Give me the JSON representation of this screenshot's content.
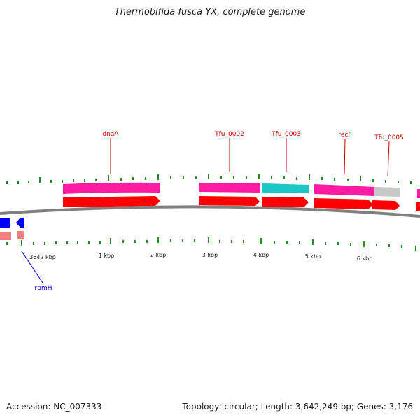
{
  "title": "Thermobifida fusca YX, complete genome",
  "footer": {
    "accession": "Accession: NC_007333",
    "summary": "Topology: circular; Length: 3,642,249 bp; Genes: 3,176"
  },
  "colors": {
    "cds_forward": "#ff0000",
    "cds_reverse": "#0000ff",
    "cog_magenta": "#ff1aa3",
    "cog_cyan": "#1ac6c6",
    "cog_gray": "#c8c8c8",
    "cog_salmon": "#f08080",
    "ticks": "#228b22",
    "backbone": "#808080",
    "label_forward": "#cc0000",
    "label_reverse": "#0000cc"
  },
  "tick_labels": [
    "3642 kbp",
    "1 kbp",
    "2 kbp",
    "3 kbp",
    "4 kbp",
    "5 kbp",
    "6 kbp"
  ],
  "genes": [
    {
      "label": "dnaA",
      "strand": "forward"
    },
    {
      "label": "Tfu_0002",
      "strand": "forward"
    },
    {
      "label": "Tfu_0003",
      "strand": "forward"
    },
    {
      "label": "recF",
      "strand": "forward"
    },
    {
      "label": "Tfu_0005",
      "strand": "forward"
    },
    {
      "label": "rpmH",
      "strand": "reverse"
    }
  ]
}
